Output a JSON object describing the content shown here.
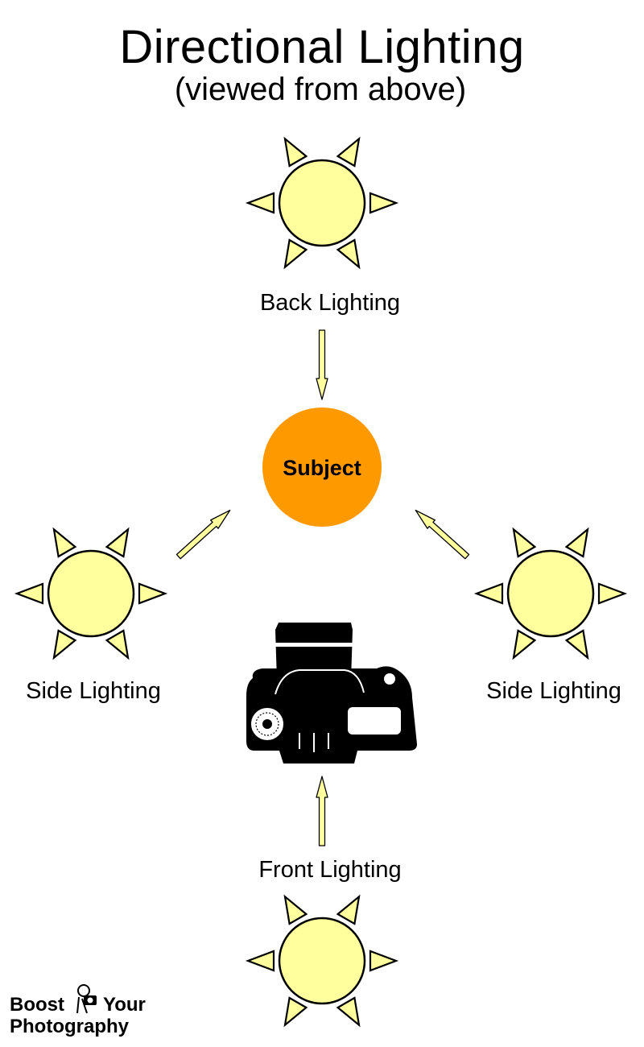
{
  "title": "Directional Lighting",
  "subtitle": "(viewed from above)",
  "subject": {
    "label": "Subject",
    "color": "#ff9900"
  },
  "lights": {
    "back": "Back Lighting",
    "side_left": "Side Lighting",
    "side_right": "Side Lighting",
    "front": "Front Lighting"
  },
  "colors": {
    "sun_fill": "#ffff9e",
    "arrow_fill": "#ffff9e",
    "outline": "#000000",
    "camera": "#000000"
  },
  "icons": {
    "sun": "sun-icon",
    "camera": "camera-icon",
    "arrow": "arrow-icon"
  },
  "logo": {
    "line1": "Boost",
    "line2": "Your",
    "line3": "Photography"
  }
}
